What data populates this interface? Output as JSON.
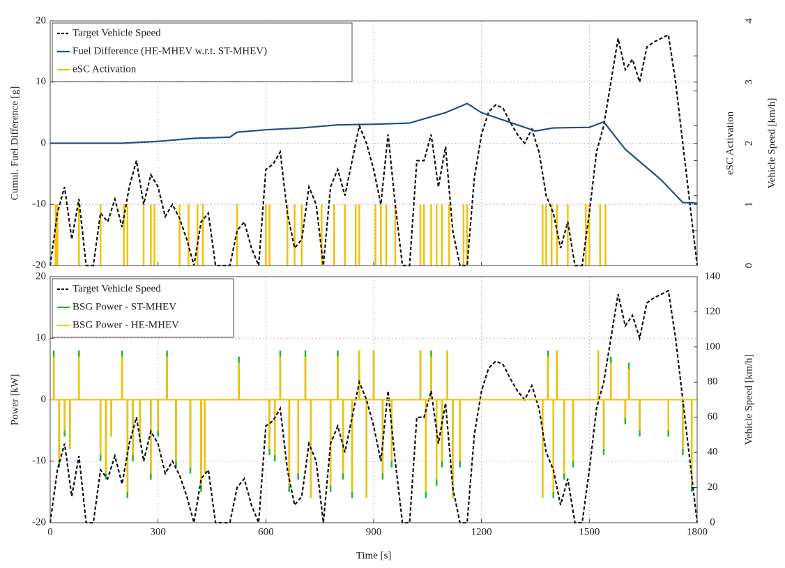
{
  "chart_data": [
    {
      "type": "line",
      "ylabel": "Cumul. Fuel Difference [g]",
      "y2label": "eSC Activation",
      "y3label": "Vehicle Speed  [km/h]",
      "xlim": [
        0,
        1800
      ],
      "xticks": [
        0,
        300,
        600,
        900,
        1200,
        1500,
        1800
      ],
      "ylim": [
        -20,
        20
      ],
      "yticks": [
        -20,
        -10,
        0,
        10,
        20
      ],
      "y2lim": [
        0,
        4
      ],
      "y2ticks": [
        0,
        1,
        2,
        3,
        4
      ],
      "y3lim": [
        0,
        140
      ],
      "y3ticks": [
        0,
        20,
        40,
        60,
        80,
        100,
        120,
        140
      ],
      "grid": true,
      "legend": "upper left",
      "series": [
        {
          "name": "Target Vehicle Speed",
          "color": "#111111",
          "axis": "y3",
          "dashed": true,
          "x": [
            0,
            20,
            40,
            60,
            80,
            100,
            120,
            140,
            160,
            180,
            200,
            220,
            240,
            260,
            280,
            300,
            320,
            340,
            360,
            380,
            400,
            420,
            440,
            460,
            480,
            500,
            520,
            540,
            560,
            580,
            600,
            620,
            640,
            660,
            680,
            700,
            720,
            740,
            760,
            780,
            800,
            820,
            840,
            860,
            880,
            900,
            920,
            940,
            960,
            980,
            1000,
            1020,
            1040,
            1060,
            1080,
            1100,
            1120,
            1140,
            1160,
            1180,
            1200,
            1220,
            1240,
            1260,
            1280,
            1300,
            1320,
            1340,
            1360,
            1380,
            1400,
            1420,
            1440,
            1460,
            1480,
            1500,
            1520,
            1540,
            1560,
            1580,
            1600,
            1620,
            1640,
            1660,
            1680,
            1700,
            1720,
            1740,
            1760,
            1780,
            1800
          ],
          "values": [
            0,
            30,
            45,
            15,
            38,
            0,
            0,
            30,
            25,
            38,
            22,
            45,
            60,
            35,
            52,
            45,
            28,
            35,
            27,
            15,
            0,
            25,
            30,
            0,
            0,
            0,
            20,
            25,
            10,
            0,
            55,
            58,
            65,
            30,
            10,
            15,
            45,
            35,
            0,
            45,
            55,
            40,
            60,
            80,
            70,
            55,
            35,
            75,
            35,
            0,
            0,
            60,
            60,
            75,
            45,
            68,
            20,
            0,
            0,
            50,
            75,
            88,
            92,
            90,
            82,
            75,
            70,
            78,
            65,
            40,
            30,
            10,
            25,
            0,
            0,
            30,
            65,
            80,
            105,
            130,
            112,
            118,
            105,
            125,
            128,
            130,
            132,
            105,
            70,
            35,
            0
          ]
        },
        {
          "name": "Fuel Difference (HE-MHEV w.r.t. ST-MHEV)",
          "color": "#1f4e8c",
          "axis": "y",
          "x": [
            0,
            100,
            200,
            300,
            400,
            500,
            520,
            600,
            700,
            800,
            900,
            1000,
            1100,
            1160,
            1200,
            1300,
            1350,
            1400,
            1500,
            1540,
            1600,
            1700,
            1760,
            1800
          ],
          "values": [
            0,
            0,
            0,
            0.3,
            0.8,
            1,
            1.8,
            2.2,
            2.5,
            3,
            3.1,
            3.3,
            5,
            6.5,
            5,
            3,
            2,
            2.5,
            2.6,
            3.5,
            -1,
            -6,
            -9.7,
            -9.8
          ]
        },
        {
          "name": "eSC Activation",
          "color": "#f5c000",
          "axis": "y2",
          "bars": true,
          "x": [
            15,
            20,
            80,
            140,
            205,
            215,
            260,
            280,
            290,
            360,
            385,
            410,
            425,
            520,
            600,
            610,
            660,
            680,
            700,
            755,
            790,
            820,
            850,
            860,
            905,
            920,
            935,
            960,
            1030,
            1040,
            1060,
            1075,
            1090,
            1110,
            1150,
            1160,
            1370,
            1380,
            1395,
            1410,
            1440,
            1490,
            1500,
            1530,
            1545
          ],
          "values": [
            1,
            1,
            1,
            1,
            1,
            1,
            1,
            1,
            1,
            1,
            1,
            1,
            1,
            1,
            1,
            1,
            1,
            1,
            1,
            1,
            1,
            1,
            1,
            1,
            1,
            1,
            1,
            1,
            1,
            1,
            1,
            1,
            1,
            1,
            1,
            1,
            1,
            1,
            1,
            1,
            1,
            1,
            1,
            1,
            1
          ]
        }
      ]
    },
    {
      "type": "line",
      "xlabel": "Time [s]",
      "ylabel": "Power [kW]",
      "y2label": "Vehicle Speed [km/h]",
      "xlim": [
        0,
        1800
      ],
      "xticks": [
        0,
        300,
        600,
        900,
        1200,
        1500,
        1800
      ],
      "ylim": [
        -20,
        20
      ],
      "yticks": [
        -20,
        -10,
        0,
        10,
        20
      ],
      "y2lim": [
        0,
        140
      ],
      "y2ticks": [
        0,
        20,
        40,
        60,
        80,
        100,
        120,
        140
      ],
      "grid": true,
      "legend": "upper left",
      "series": [
        {
          "name": "Target Vehicle Speed",
          "color": "#111111",
          "axis": "y2",
          "dashed": true,
          "x": [
            0,
            20,
            40,
            60,
            80,
            100,
            120,
            140,
            160,
            180,
            200,
            220,
            240,
            260,
            280,
            300,
            320,
            340,
            360,
            380,
            400,
            420,
            440,
            460,
            480,
            500,
            520,
            540,
            560,
            580,
            600,
            620,
            640,
            660,
            680,
            700,
            720,
            740,
            760,
            780,
            800,
            820,
            840,
            860,
            880,
            900,
            920,
            940,
            960,
            980,
            1000,
            1020,
            1040,
            1060,
            1080,
            1100,
            1120,
            1140,
            1160,
            1180,
            1200,
            1220,
            1240,
            1260,
            1280,
            1300,
            1320,
            1340,
            1360,
            1380,
            1400,
            1420,
            1440,
            1460,
            1480,
            1500,
            1520,
            1540,
            1560,
            1580,
            1600,
            1620,
            1640,
            1660,
            1680,
            1700,
            1720,
            1740,
            1760,
            1780,
            1800
          ],
          "values": [
            0,
            30,
            45,
            15,
            38,
            0,
            0,
            30,
            25,
            38,
            22,
            45,
            60,
            35,
            52,
            45,
            28,
            35,
            27,
            15,
            0,
            25,
            30,
            0,
            0,
            0,
            20,
            25,
            10,
            0,
            55,
            58,
            65,
            30,
            10,
            15,
            45,
            35,
            0,
            45,
            55,
            40,
            60,
            80,
            70,
            55,
            35,
            75,
            35,
            0,
            0,
            60,
            60,
            75,
            45,
            68,
            20,
            0,
            0,
            50,
            75,
            88,
            92,
            90,
            82,
            75,
            70,
            78,
            65,
            40,
            30,
            10,
            25,
            0,
            0,
            30,
            65,
            80,
            105,
            130,
            112,
            118,
            105,
            125,
            128,
            130,
            132,
            105,
            70,
            35,
            0
          ]
        },
        {
          "name": "BSG Power  - ST-MHEV",
          "color": "#1db83a",
          "axis": "y",
          "bars": true,
          "x": [
            10,
            25,
            40,
            55,
            80,
            140,
            155,
            170,
            200,
            215,
            230,
            250,
            280,
            300,
            325,
            350,
            390,
            420,
            430,
            525,
            610,
            625,
            640,
            665,
            690,
            710,
            725,
            780,
            800,
            815,
            840,
            860,
            880,
            900,
            925,
            950,
            1030,
            1045,
            1060,
            1075,
            1090,
            1105,
            1120,
            1140,
            1370,
            1385,
            1400,
            1410,
            1430,
            1455,
            1525,
            1540,
            1560,
            1600,
            1610,
            1640,
            1720,
            1760,
            1785
          ],
          "values": [
            8,
            -11,
            -6,
            -8,
            8,
            -10,
            -13,
            -6,
            8,
            -16,
            -10,
            -7,
            -13,
            -6,
            8,
            -11,
            -12,
            -15,
            -12,
            7,
            -9,
            -10,
            8,
            -15,
            -13,
            8,
            -16,
            -15,
            8,
            -13,
            -16,
            8,
            -16,
            8,
            -13,
            -11,
            8,
            -16,
            8,
            -14,
            -11,
            8,
            -16,
            -11,
            -16,
            8,
            -16,
            8,
            -13,
            -11,
            8,
            -9,
            7,
            -4,
            6,
            -6,
            -6,
            -9,
            -15
          ]
        },
        {
          "name": "BSG Power  - HE-MHEV",
          "color": "#f5c000",
          "axis": "y",
          "bars": true,
          "x": [
            10,
            25,
            40,
            55,
            80,
            140,
            155,
            170,
            200,
            215,
            230,
            250,
            280,
            300,
            325,
            350,
            390,
            420,
            430,
            525,
            610,
            625,
            640,
            665,
            690,
            710,
            725,
            780,
            800,
            815,
            840,
            860,
            880,
            900,
            925,
            950,
            1030,
            1045,
            1060,
            1075,
            1090,
            1105,
            1120,
            1140,
            1370,
            1385,
            1400,
            1410,
            1430,
            1455,
            1525,
            1540,
            1560,
            1600,
            1610,
            1640,
            1720,
            1760,
            1785
          ],
          "values": [
            7,
            -10,
            -5,
            -8,
            7,
            -9,
            -12,
            -6,
            7,
            -15,
            -9,
            -7,
            -12,
            -5,
            7,
            -10,
            -11,
            -14,
            -12,
            6,
            -8,
            -9,
            7,
            -14,
            -12,
            7,
            -16,
            -14,
            7,
            -12,
            -15,
            8,
            -16,
            8,
            -12,
            -10,
            8,
            -15,
            7,
            -13,
            -10,
            8,
            -16,
            -10,
            -16,
            7,
            -15,
            8,
            -12,
            -10,
            8,
            -8,
            6,
            -3,
            5,
            -5,
            -5,
            -8,
            -14
          ]
        }
      ]
    }
  ]
}
